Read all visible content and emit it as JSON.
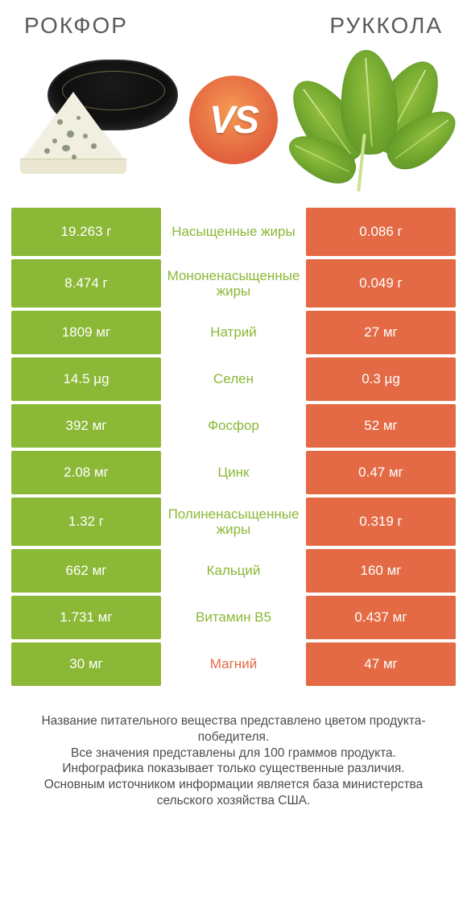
{
  "colors": {
    "green": "#8bb836",
    "orange": "#e46a45",
    "text": "#4c4c4c",
    "title": "#5a5a5a",
    "vs_bg_center": "#f59a55",
    "vs_bg_edge": "#e15f3c"
  },
  "header": {
    "left_title": "РОКФОР",
    "right_title": "РУККОЛА"
  },
  "vs_label": "VS",
  "rows": [
    {
      "label": "Насыщенные жиры",
      "left": "19.263 г",
      "right": "0.086 г",
      "winner": "left",
      "twoLine": true
    },
    {
      "label": "Мононенасыщенные жиры",
      "left": "8.474 г",
      "right": "0.049 г",
      "winner": "left",
      "twoLine": true
    },
    {
      "label": "Натрий",
      "left": "1809 мг",
      "right": "27 мг",
      "winner": "left",
      "twoLine": false
    },
    {
      "label": "Селен",
      "left": "14.5 µg",
      "right": "0.3 µg",
      "winner": "left",
      "twoLine": false
    },
    {
      "label": "Фосфор",
      "left": "392 мг",
      "right": "52 мг",
      "winner": "left",
      "twoLine": false
    },
    {
      "label": "Цинк",
      "left": "2.08 мг",
      "right": "0.47 мг",
      "winner": "left",
      "twoLine": false
    },
    {
      "label": "Полиненасыщенные жиры",
      "left": "1.32 г",
      "right": "0.319 г",
      "winner": "left",
      "twoLine": true
    },
    {
      "label": "Кальций",
      "left": "662 мг",
      "right": "160 мг",
      "winner": "left",
      "twoLine": false
    },
    {
      "label": "Витамин B5",
      "left": "1.731 мг",
      "right": "0.437 мг",
      "winner": "left",
      "twoLine": false
    },
    {
      "label": "Магний",
      "left": "30 мг",
      "right": "47 мг",
      "winner": "right",
      "twoLine": false
    }
  ],
  "footnote": "Название питательного вещества представлено цветом продукта-победителя.\nВсе значения представлены для 100 граммов продукта.\nИнфографика показывает только существенные различия.\nОсновным источником информации является база министерства сельского хозяйства США."
}
